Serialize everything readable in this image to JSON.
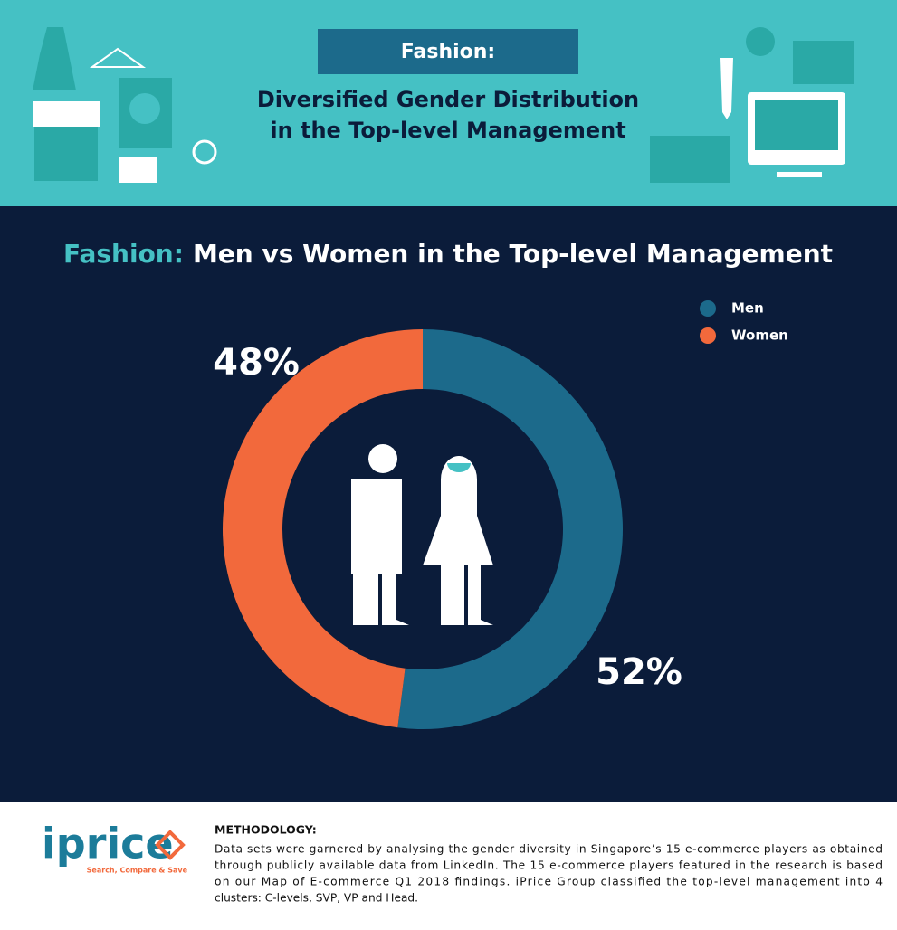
{
  "header": {
    "badge": "Fashion:",
    "title_lines": [
      "Diversified Gender Distribution",
      "in the Top-level Management"
    ]
  },
  "chart_data": {
    "type": "donut",
    "title_prefix": "Fashion:",
    "title": "Men vs Women in the Top-level Management",
    "categories": [
      "Men",
      "Women"
    ],
    "values": [
      52,
      48
    ],
    "value_labels": [
      "52%",
      "48%"
    ],
    "colors": [
      "#1c6a8b",
      "#f2693c"
    ],
    "legend": "top-right"
  },
  "footer": {
    "logo": "iprice",
    "tagline": "Search, Compare & Save",
    "heading": "METHODOLOGY:",
    "lines": [
      "Data sets were garnered by analysing the gender diversity in Singapore’s 15 e-commerce players as obtained",
      "through publicly available data from LinkedIn. The 15 e-commerce players featured in the research is based",
      "on our Map of E-commerce Q1 2018 findings. iPrice Group classified the top-level management into 4",
      "clusters: C-levels, SVP, VP and Head."
    ]
  }
}
